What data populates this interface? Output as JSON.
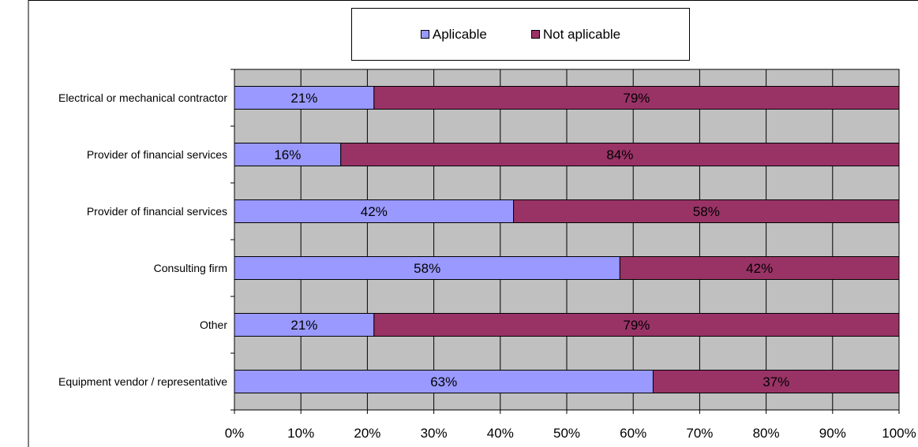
{
  "chart_data": {
    "type": "bar",
    "orientation": "horizontal",
    "stacked": "percent",
    "categories": [
      "Electrical or mechanical contractor",
      "Provider of financial services",
      "Provider of financial services",
      "Consulting firm",
      "Other",
      "Equipment vendor / representative"
    ],
    "series": [
      {
        "name": "Aplicable",
        "color": "#9999ff",
        "values": [
          21,
          16,
          42,
          58,
          21,
          63
        ],
        "labels": [
          "21%",
          "16%",
          "42%",
          "58%",
          "21%",
          "63%"
        ]
      },
      {
        "name": "Not aplicable",
        "color": "#993366",
        "values": [
          79,
          84,
          58,
          42,
          79,
          37
        ],
        "labels": [
          "79%",
          "84%",
          "58%",
          "42%",
          "79%",
          "37%"
        ]
      }
    ],
    "xlim": [
      0,
      100
    ],
    "xticks": [
      "0%",
      "10%",
      "20%",
      "30%",
      "40%",
      "50%",
      "60%",
      "70%",
      "80%",
      "90%",
      "100%"
    ],
    "grid": true,
    "plot_background": "#c0c0c0",
    "legend_position": "top"
  }
}
